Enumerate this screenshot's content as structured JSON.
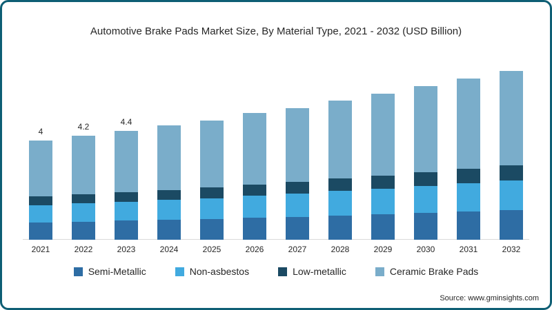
{
  "title": "Automotive Brake Pads Market Size, By Material Type, 2021 - 2032 (USD Billion)",
  "source": "Source: www.gminsights.com",
  "frame": {
    "border_color": "#0e5e74"
  },
  "chart_data": {
    "type": "bar",
    "stacked": true,
    "title": "Automotive Brake Pads Market Size, By Material Type, 2021 - 2032 (USD Billion)",
    "xlabel": "",
    "ylabel": "USD Billion",
    "ylim": [
      0,
      7.5
    ],
    "grid": false,
    "legend_position": "bottom",
    "categories": [
      "2021",
      "2022",
      "2023",
      "2024",
      "2025",
      "2026",
      "2027",
      "2028",
      "2029",
      "2030",
      "2031",
      "2032"
    ],
    "totals": [
      4.0,
      4.2,
      4.4,
      4.6,
      4.8,
      5.1,
      5.3,
      5.6,
      5.9,
      6.2,
      6.5,
      6.8
    ],
    "bar_labels": [
      "4",
      "4.2",
      "4.4",
      "",
      "",
      "",
      "",
      "",
      "",
      "",
      "",
      ""
    ],
    "series": [
      {
        "name": "Semi-Metallic",
        "color": "#2e6da4",
        "values": [
          0.7,
          0.73,
          0.77,
          0.8,
          0.84,
          0.89,
          0.93,
          0.98,
          1.03,
          1.08,
          1.14,
          1.19
        ]
      },
      {
        "name": "Non-asbestos",
        "color": "#41aadf",
        "values": [
          0.7,
          0.73,
          0.77,
          0.8,
          0.84,
          0.89,
          0.93,
          0.98,
          1.03,
          1.08,
          1.14,
          1.19
        ]
      },
      {
        "name": "Low-metallic",
        "color": "#1b4a63",
        "values": [
          0.35,
          0.37,
          0.39,
          0.41,
          0.43,
          0.45,
          0.47,
          0.5,
          0.53,
          0.55,
          0.58,
          0.61
        ]
      },
      {
        "name": "Ceramic Brake Pads",
        "color": "#7aadca",
        "values": [
          2.25,
          2.37,
          2.47,
          2.59,
          2.69,
          2.87,
          2.97,
          3.14,
          3.31,
          3.49,
          3.64,
          3.81
        ]
      }
    ]
  }
}
